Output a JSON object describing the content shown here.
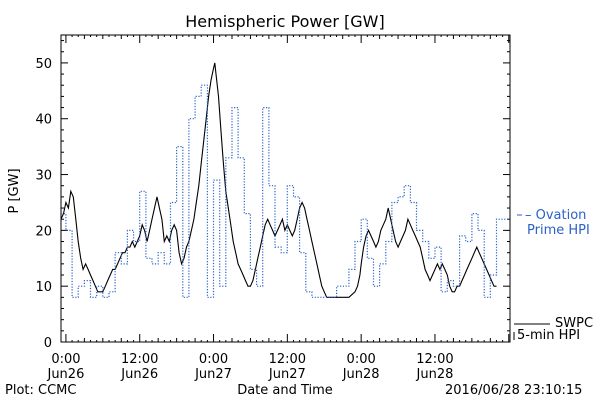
{
  "chart_data": {
    "type": "line",
    "title": "Hemispheric Power [GW]",
    "xlabel": "Date and Time",
    "ylabel": "P [GW]",
    "ylim": [
      0,
      55
    ],
    "xlim": [
      -0.8,
      72.2
    ],
    "grid": false,
    "y_ticks": [
      0,
      10,
      20,
      30,
      40,
      50
    ],
    "x_ticks": [
      {
        "x": 0,
        "time": "0:00",
        "date": "Jun26"
      },
      {
        "x": 12,
        "time": "12:00",
        "date": "Jun26"
      },
      {
        "x": 24,
        "time": "0:00",
        "date": "Jun27"
      },
      {
        "x": 36,
        "time": "12:00",
        "date": "Jun27"
      },
      {
        "x": 48,
        "time": "0:00",
        "date": "Jun28"
      },
      {
        "x": 60,
        "time": "12:00",
        "date": "Jun28"
      }
    ],
    "series": [
      {
        "name": "SWPC 5-min HPI",
        "style": "solid",
        "color": "#000000",
        "points": [
          [
            -0.8,
            22
          ],
          [
            -0.4,
            23
          ],
          [
            0,
            25
          ],
          [
            0.4,
            24
          ],
          [
            0.8,
            27
          ],
          [
            1.2,
            26
          ],
          [
            1.6,
            22
          ],
          [
            2,
            18
          ],
          [
            2.4,
            15
          ],
          [
            2.8,
            13
          ],
          [
            3.2,
            14
          ],
          [
            3.6,
            13
          ],
          [
            4,
            12
          ],
          [
            4.4,
            11
          ],
          [
            4.8,
            10
          ],
          [
            5.2,
            9
          ],
          [
            5.6,
            9
          ],
          [
            6,
            9
          ],
          [
            6.4,
            10
          ],
          [
            6.8,
            11
          ],
          [
            7.2,
            12
          ],
          [
            7.6,
            13
          ],
          [
            8,
            13
          ],
          [
            8.4,
            14
          ],
          [
            8.8,
            15
          ],
          [
            9.2,
            16
          ],
          [
            9.6,
            16
          ],
          [
            10,
            17
          ],
          [
            10.4,
            17
          ],
          [
            10.8,
            18
          ],
          [
            11.2,
            17
          ],
          [
            11.6,
            18
          ],
          [
            12,
            19
          ],
          [
            12.4,
            21
          ],
          [
            12.8,
            20
          ],
          [
            13.2,
            18
          ],
          [
            13.6,
            20
          ],
          [
            14,
            22
          ],
          [
            14.4,
            24
          ],
          [
            14.8,
            26
          ],
          [
            15.2,
            24
          ],
          [
            15.6,
            22
          ],
          [
            16,
            18
          ],
          [
            16.4,
            19
          ],
          [
            16.8,
            18
          ],
          [
            17.2,
            20
          ],
          [
            17.6,
            21
          ],
          [
            18,
            20
          ],
          [
            18.4,
            16
          ],
          [
            18.8,
            14
          ],
          [
            19.2,
            15
          ],
          [
            19.6,
            17
          ],
          [
            20,
            18
          ],
          [
            20.4,
            20
          ],
          [
            20.8,
            22
          ],
          [
            21.2,
            25
          ],
          [
            21.6,
            28
          ],
          [
            22,
            32
          ],
          [
            22.4,
            36
          ],
          [
            22.8,
            40
          ],
          [
            23.2,
            44
          ],
          [
            23.6,
            47
          ],
          [
            24,
            49
          ],
          [
            24.2,
            50
          ],
          [
            24.4,
            48
          ],
          [
            24.8,
            44
          ],
          [
            25.2,
            38
          ],
          [
            25.6,
            32
          ],
          [
            26,
            27
          ],
          [
            26.4,
            24
          ],
          [
            26.8,
            21
          ],
          [
            27.2,
            18
          ],
          [
            27.6,
            16
          ],
          [
            28,
            14
          ],
          [
            28.4,
            13
          ],
          [
            28.8,
            12
          ],
          [
            29.2,
            11
          ],
          [
            29.6,
            10
          ],
          [
            30,
            10
          ],
          [
            30.4,
            11
          ],
          [
            30.8,
            13
          ],
          [
            31.2,
            15
          ],
          [
            31.6,
            17
          ],
          [
            32,
            19
          ],
          [
            32.4,
            21
          ],
          [
            32.8,
            22
          ],
          [
            33.2,
            21
          ],
          [
            33.6,
            20
          ],
          [
            34,
            19
          ],
          [
            34.4,
            20
          ],
          [
            34.8,
            21
          ],
          [
            35.2,
            22
          ],
          [
            35.6,
            20
          ],
          [
            36,
            21
          ],
          [
            36.4,
            20
          ],
          [
            36.8,
            19
          ],
          [
            37.2,
            20
          ],
          [
            37.6,
            22
          ],
          [
            38,
            24
          ],
          [
            38.4,
            25
          ],
          [
            38.8,
            24
          ],
          [
            39.2,
            22
          ],
          [
            39.6,
            20
          ],
          [
            40,
            18
          ],
          [
            40.4,
            16
          ],
          [
            40.8,
            14
          ],
          [
            41.2,
            12
          ],
          [
            41.6,
            10
          ],
          [
            42,
            9
          ],
          [
            42.4,
            8
          ],
          [
            43,
            8
          ],
          [
            44,
            8
          ],
          [
            45,
            8
          ],
          [
            46,
            8
          ],
          [
            47,
            9
          ],
          [
            47.4,
            10
          ],
          [
            47.8,
            12
          ],
          [
            48,
            14
          ],
          [
            48.4,
            17
          ],
          [
            48.8,
            19
          ],
          [
            49.2,
            20
          ],
          [
            49.6,
            19
          ],
          [
            50,
            18
          ],
          [
            50.4,
            17
          ],
          [
            50.8,
            18
          ],
          [
            51.2,
            20
          ],
          [
            51.6,
            21
          ],
          [
            52,
            22
          ],
          [
            52.4,
            24
          ],
          [
            52.8,
            22
          ],
          [
            53.2,
            20
          ],
          [
            53.6,
            18
          ],
          [
            54,
            17
          ],
          [
            54.4,
            18
          ],
          [
            54.8,
            19
          ],
          [
            55.2,
            20
          ],
          [
            55.6,
            22
          ],
          [
            56,
            21
          ],
          [
            56.4,
            20
          ],
          [
            56.8,
            19
          ],
          [
            57.2,
            18
          ],
          [
            57.6,
            17
          ],
          [
            58,
            15
          ],
          [
            58.4,
            13
          ],
          [
            58.8,
            12
          ],
          [
            59.2,
            11
          ],
          [
            59.6,
            12
          ],
          [
            60,
            13
          ],
          [
            60.4,
            14
          ],
          [
            60.8,
            13
          ],
          [
            61.2,
            14
          ],
          [
            61.6,
            13
          ],
          [
            62,
            12
          ],
          [
            62.4,
            10
          ],
          [
            62.8,
            9
          ],
          [
            63.2,
            9
          ],
          [
            63.6,
            10
          ],
          [
            64,
            10
          ],
          [
            64.4,
            11
          ],
          [
            64.8,
            12
          ],
          [
            65.2,
            13
          ],
          [
            65.6,
            14
          ],
          [
            66,
            15
          ],
          [
            66.4,
            16
          ],
          [
            66.8,
            17
          ],
          [
            67.2,
            16
          ],
          [
            67.6,
            15
          ],
          [
            68,
            14
          ],
          [
            68.4,
            13
          ],
          [
            68.8,
            12
          ],
          [
            69.2,
            11
          ],
          [
            69.6,
            10
          ],
          [
            70,
            10
          ]
        ]
      },
      {
        "name": "Ovation Prime HPI",
        "style": "dotted",
        "color": "#2a62c9",
        "points": [
          [
            -0.8,
            23
          ],
          [
            0,
            23
          ],
          [
            0,
            20
          ],
          [
            1,
            20
          ],
          [
            1,
            8
          ],
          [
            2,
            8
          ],
          [
            2,
            10
          ],
          [
            3,
            10
          ],
          [
            3,
            11
          ],
          [
            4,
            11
          ],
          [
            4,
            8
          ],
          [
            5,
            8
          ],
          [
            5,
            10
          ],
          [
            6,
            10
          ],
          [
            6,
            8
          ],
          [
            7,
            8
          ],
          [
            7,
            9
          ],
          [
            8,
            9
          ],
          [
            8,
            16
          ],
          [
            9,
            16
          ],
          [
            9,
            14
          ],
          [
            10,
            14
          ],
          [
            10,
            20
          ],
          [
            11,
            20
          ],
          [
            11,
            18
          ],
          [
            12,
            18
          ],
          [
            12,
            27
          ],
          [
            13,
            27
          ],
          [
            13,
            15
          ],
          [
            14,
            15
          ],
          [
            14,
            14
          ],
          [
            15,
            14
          ],
          [
            15,
            16
          ],
          [
            16,
            16
          ],
          [
            16,
            14
          ],
          [
            17,
            14
          ],
          [
            17,
            25
          ],
          [
            18,
            25
          ],
          [
            18,
            35
          ],
          [
            19,
            35
          ],
          [
            19,
            8
          ],
          [
            20,
            8
          ],
          [
            20,
            40
          ],
          [
            21,
            40
          ],
          [
            21,
            44
          ],
          [
            22,
            44
          ],
          [
            22,
            46
          ],
          [
            23,
            46
          ],
          [
            23,
            8
          ],
          [
            24,
            8
          ],
          [
            24,
            29
          ],
          [
            25,
            29
          ],
          [
            25,
            10
          ],
          [
            26,
            10
          ],
          [
            26,
            33
          ],
          [
            27,
            33
          ],
          [
            27,
            42
          ],
          [
            28,
            42
          ],
          [
            28,
            33
          ],
          [
            29,
            33
          ],
          [
            29,
            23
          ],
          [
            30,
            23
          ],
          [
            30,
            13
          ],
          [
            31,
            13
          ],
          [
            31,
            10
          ],
          [
            32,
            10
          ],
          [
            32,
            42
          ],
          [
            33,
            42
          ],
          [
            33,
            28
          ],
          [
            34,
            28
          ],
          [
            34,
            17
          ],
          [
            35,
            17
          ],
          [
            35,
            16
          ],
          [
            36,
            16
          ],
          [
            36,
            28
          ],
          [
            37,
            28
          ],
          [
            37,
            26
          ],
          [
            38,
            26
          ],
          [
            38,
            16
          ],
          [
            39,
            16
          ],
          [
            39,
            9
          ],
          [
            40,
            9
          ],
          [
            40,
            8
          ],
          [
            42,
            8
          ],
          [
            42,
            8
          ],
          [
            44,
            8
          ],
          [
            44,
            10
          ],
          [
            46,
            10
          ],
          [
            46,
            13
          ],
          [
            47,
            13
          ],
          [
            47,
            18
          ],
          [
            48,
            18
          ],
          [
            48,
            22
          ],
          [
            49,
            22
          ],
          [
            49,
            15
          ],
          [
            50,
            15
          ],
          [
            50,
            10
          ],
          [
            51,
            10
          ],
          [
            51,
            14
          ],
          [
            52,
            14
          ],
          [
            52,
            18
          ],
          [
            53,
            18
          ],
          [
            53,
            25
          ],
          [
            54,
            25
          ],
          [
            54,
            26
          ],
          [
            55,
            26
          ],
          [
            55,
            28
          ],
          [
            56,
            28
          ],
          [
            56,
            25
          ],
          [
            57,
            25
          ],
          [
            57,
            20
          ],
          [
            58,
            20
          ],
          [
            58,
            18
          ],
          [
            59,
            18
          ],
          [
            59,
            15
          ],
          [
            60,
            15
          ],
          [
            60,
            17
          ],
          [
            61,
            17
          ],
          [
            61,
            9
          ],
          [
            62,
            9
          ],
          [
            62,
            11
          ],
          [
            63,
            11
          ],
          [
            63,
            10
          ],
          [
            64,
            10
          ],
          [
            64,
            19
          ],
          [
            65,
            19
          ],
          [
            65,
            18
          ],
          [
            66,
            18
          ],
          [
            66,
            23
          ],
          [
            67,
            23
          ],
          [
            67,
            20
          ],
          [
            68,
            20
          ],
          [
            68,
            8
          ],
          [
            69,
            8
          ],
          [
            69,
            12
          ],
          [
            70,
            12
          ],
          [
            70,
            22
          ],
          [
            72.2,
            22
          ]
        ]
      }
    ],
    "annotations": {
      "swpc_line1": "SWPC",
      "swpc_line2": "5-min HPI",
      "ovation_line1": "– Ovation",
      "ovation_line2": "Prime HPI",
      "plot_credit": "Plot: CCMC",
      "timestamp": "2016/06/28 23:10:15"
    }
  }
}
